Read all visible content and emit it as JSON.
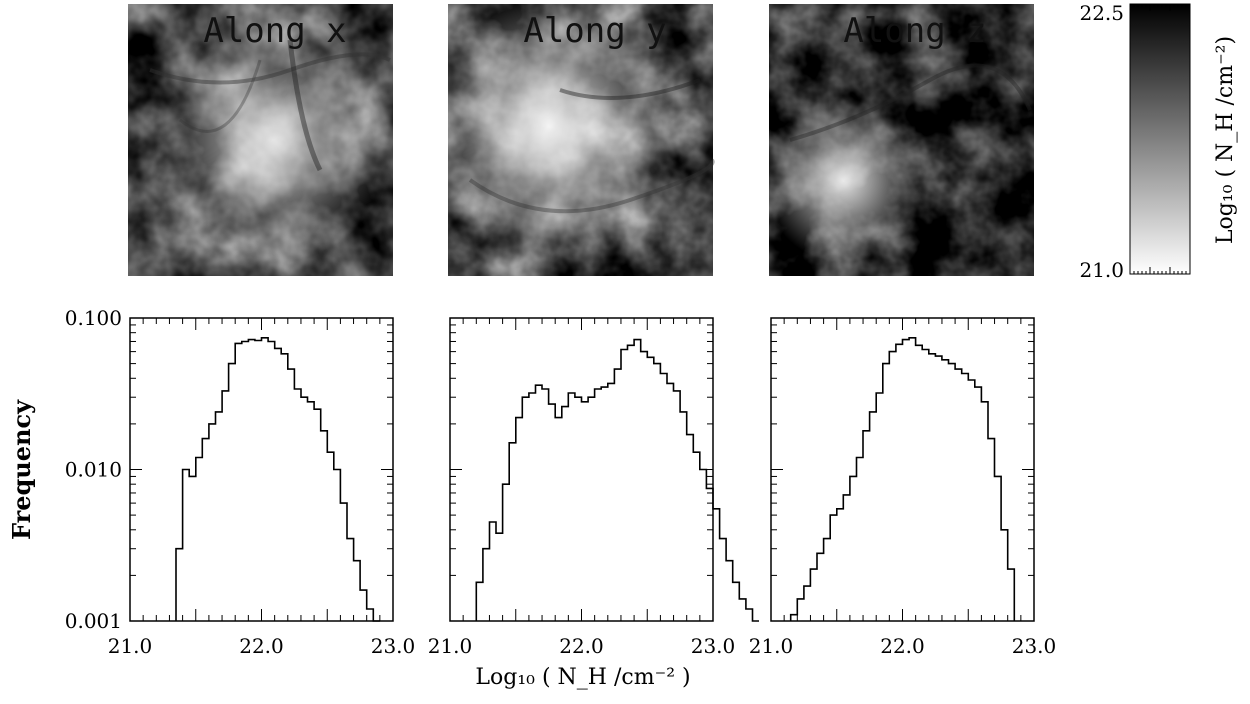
{
  "maps": {
    "panels": [
      {
        "title": "Along x"
      },
      {
        "title": "Along y"
      },
      {
        "title": "Along z"
      }
    ],
    "colorbar": {
      "min_label": "21.0",
      "max_label": "22.5",
      "label": "Log₁₀ ( N_H /cm⁻²)",
      "range": [
        21.0,
        22.5
      ],
      "colormap": "greyscale, white (low) to black (high)"
    }
  },
  "chart_data": [
    {
      "type": "histogram",
      "panel": "Along x",
      "xlabel": "Log₁₀ ( N_H /cm⁻² )",
      "ylabel": "Frequency",
      "xlim": [
        21.0,
        23.0
      ],
      "ylim": [
        0.001,
        0.1
      ],
      "yscale": "log",
      "xticks": [
        "21.0",
        "22.0",
        "23.0"
      ],
      "yticks": [
        "0.001",
        "0.010",
        "0.100"
      ],
      "bin_width": 0.05,
      "bin_start": 21.35,
      "values": [
        0.003,
        0.01,
        0.009,
        0.012,
        0.016,
        0.02,
        0.024,
        0.033,
        0.05,
        0.068,
        0.07,
        0.072,
        0.071,
        0.074,
        0.07,
        0.063,
        0.058,
        0.046,
        0.034,
        0.03,
        0.028,
        0.025,
        0.018,
        0.013,
        0.01,
        0.006,
        0.0035,
        0.0025,
        0.0016,
        0.0012,
        0.001
      ]
    },
    {
      "type": "histogram",
      "panel": "Along y",
      "xlabel": "Log₁₀ ( N_H /cm⁻² )",
      "ylabel": "Frequency",
      "xlim": [
        21.0,
        23.0
      ],
      "ylim": [
        0.001,
        0.1
      ],
      "yscale": "log",
      "xticks": [
        "21.0",
        "22.0",
        "23.0"
      ],
      "yticks": [
        "0.001",
        "0.010",
        "0.100"
      ],
      "bin_width": 0.05,
      "bin_start": 21.2,
      "values": [
        0.0018,
        0.003,
        0.0045,
        0.0038,
        0.008,
        0.015,
        0.022,
        0.03,
        0.032,
        0.036,
        0.034,
        0.027,
        0.022,
        0.026,
        0.032,
        0.03,
        0.028,
        0.03,
        0.034,
        0.035,
        0.037,
        0.046,
        0.062,
        0.066,
        0.072,
        0.06,
        0.055,
        0.05,
        0.043,
        0.037,
        0.033,
        0.024,
        0.017,
        0.013,
        0.01,
        0.0075,
        0.0055,
        0.0035,
        0.0025,
        0.0018,
        0.0014,
        0.0012,
        0.001
      ]
    },
    {
      "type": "histogram",
      "panel": "Along z",
      "xlabel": "Log₁₀ ( N_H /cm⁻² )",
      "ylabel": "Frequency",
      "xlim": [
        21.0,
        23.0
      ],
      "ylim": [
        0.001,
        0.1
      ],
      "yscale": "log",
      "xticks": [
        "21.0",
        "22.0",
        "23.0"
      ],
      "yticks": [
        "0.001",
        "0.010",
        "0.100"
      ],
      "bin_width": 0.05,
      "bin_start": 21.15,
      "values": [
        0.0011,
        0.0014,
        0.0017,
        0.0022,
        0.0028,
        0.0035,
        0.005,
        0.0055,
        0.0068,
        0.009,
        0.012,
        0.018,
        0.024,
        0.032,
        0.05,
        0.06,
        0.067,
        0.072,
        0.074,
        0.066,
        0.062,
        0.058,
        0.056,
        0.053,
        0.05,
        0.046,
        0.043,
        0.039,
        0.035,
        0.028,
        0.016,
        0.009,
        0.004,
        0.0022
      ]
    }
  ]
}
